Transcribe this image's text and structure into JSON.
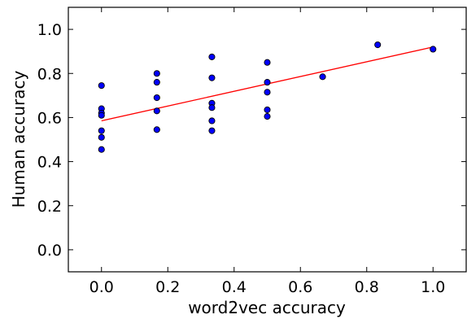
{
  "chart_data": {
    "type": "scatter",
    "xlabel": "word2vec accuracy",
    "ylabel": "Human accuracy",
    "xlim": [
      -0.1,
      1.1
    ],
    "ylim": [
      -0.1,
      1.1
    ],
    "xticks": [
      0.0,
      0.2,
      0.4,
      0.6,
      0.8,
      1.0
    ],
    "yticks": [
      0.0,
      0.2,
      0.4,
      0.6,
      0.8,
      1.0
    ],
    "xtick_labels": [
      "0.0",
      "0.2",
      "0.4",
      "0.6",
      "0.8",
      "1.0"
    ],
    "ytick_labels": [
      "0.0",
      "0.2",
      "0.4",
      "0.6",
      "0.8",
      "1.0"
    ],
    "grid": false,
    "point_color": "#0000ff",
    "line_color": "#ff0000",
    "points": [
      {
        "x": 0.0,
        "y": 0.745
      },
      {
        "x": 0.0,
        "y": 0.64
      },
      {
        "x": 0.0,
        "y": 0.62
      },
      {
        "x": 0.0,
        "y": 0.61
      },
      {
        "x": 0.0,
        "y": 0.54
      },
      {
        "x": 0.0,
        "y": 0.51
      },
      {
        "x": 0.0,
        "y": 0.455
      },
      {
        "x": 0.167,
        "y": 0.8
      },
      {
        "x": 0.167,
        "y": 0.76
      },
      {
        "x": 0.167,
        "y": 0.69
      },
      {
        "x": 0.167,
        "y": 0.63
      },
      {
        "x": 0.167,
        "y": 0.545
      },
      {
        "x": 0.333,
        "y": 0.875
      },
      {
        "x": 0.333,
        "y": 0.78
      },
      {
        "x": 0.333,
        "y": 0.665
      },
      {
        "x": 0.333,
        "y": 0.645
      },
      {
        "x": 0.333,
        "y": 0.585
      },
      {
        "x": 0.333,
        "y": 0.54
      },
      {
        "x": 0.5,
        "y": 0.85
      },
      {
        "x": 0.5,
        "y": 0.76
      },
      {
        "x": 0.5,
        "y": 0.715
      },
      {
        "x": 0.5,
        "y": 0.635
      },
      {
        "x": 0.5,
        "y": 0.605
      },
      {
        "x": 0.667,
        "y": 0.785
      },
      {
        "x": 0.833,
        "y": 0.93
      },
      {
        "x": 1.0,
        "y": 0.91
      }
    ],
    "fit_line": {
      "x": [
        0.0,
        1.0
      ],
      "y": [
        0.585,
        0.92
      ]
    }
  }
}
